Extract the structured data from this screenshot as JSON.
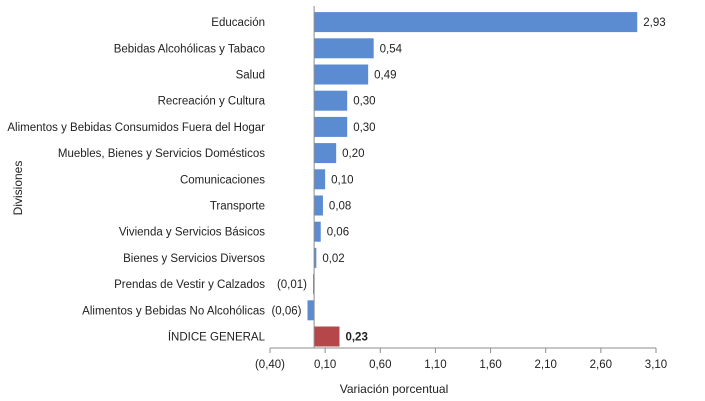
{
  "chart_data": {
    "type": "bar",
    "orientation": "horizontal",
    "categories": [
      "Educación",
      "Bebidas Alcohólicas y Tabaco",
      "Salud",
      "Recreación y Cultura",
      "Alimentos y Bebidas Consumidos Fuera del Hogar",
      "Muebles, Bienes y Servicios Domésticos",
      "Comunicaciones",
      "Transporte",
      "Vivienda y Servicios Básicos",
      "Bienes y Servicios Diversos",
      "Prendas de Vestir y Calzados",
      "Alimentos y Bebidas No Alcohólicas",
      "ÍNDICE GENERAL"
    ],
    "values": [
      2.93,
      0.54,
      0.49,
      0.3,
      0.3,
      0.2,
      0.1,
      0.08,
      0.06,
      0.02,
      -0.01,
      -0.06,
      0.23
    ],
    "value_labels": [
      "2,93",
      "0,54",
      "0,49",
      "0,30",
      "0,30",
      "0,20",
      "0,10",
      "0,08",
      "0,06",
      "0,02",
      "(0,01)",
      "(0,06)",
      "0,23"
    ],
    "highlight_index": 12,
    "xlabel": "Variación porcentual",
    "ylabel": "Divisiones",
    "xlim": [
      -0.4,
      3.1
    ],
    "xticks": [
      -0.4,
      0.1,
      0.6,
      1.1,
      1.6,
      2.1,
      2.6,
      3.1
    ],
    "xtick_labels": [
      "(0,40)",
      "0,10",
      "0,60",
      "1,10",
      "1,60",
      "2,10",
      "2,60",
      "3,10"
    ],
    "grid": false,
    "colors": {
      "bar": "#5b8bd0",
      "highlight": "#b5474a",
      "axis": "#8c8c8c"
    }
  }
}
